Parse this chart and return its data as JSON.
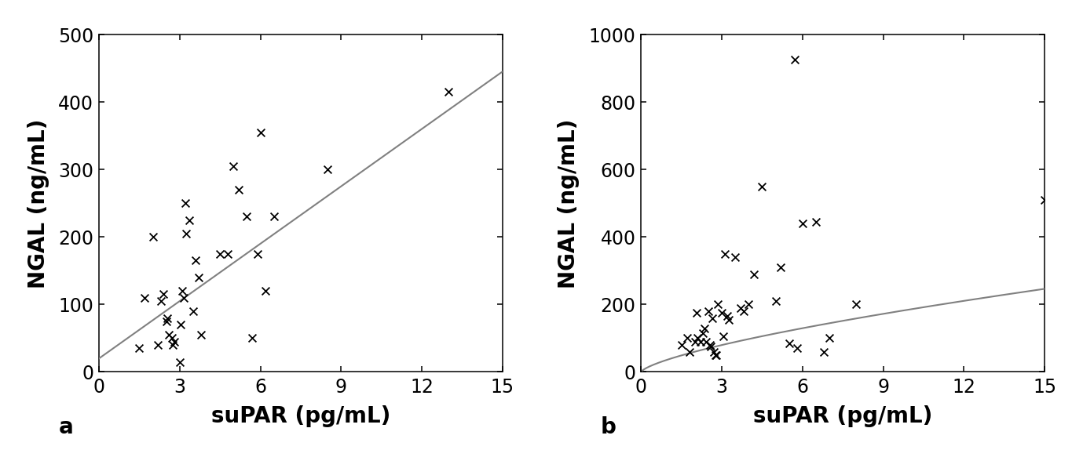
{
  "panel_a": {
    "label": "a",
    "xlabel": "suPAR (pg/mL)",
    "ylabel": "NGAL (ng/mL)",
    "xlim": [
      0,
      15
    ],
    "ylim": [
      0,
      500
    ],
    "xticks": [
      0,
      3,
      6,
      9,
      12,
      15
    ],
    "yticks": [
      0,
      100,
      200,
      300,
      400,
      500
    ],
    "scatter_x": [
      1.5,
      1.7,
      2.0,
      2.2,
      2.3,
      2.4,
      2.5,
      2.55,
      2.6,
      2.7,
      2.75,
      2.8,
      3.0,
      3.05,
      3.1,
      3.15,
      3.2,
      3.25,
      3.35,
      3.5,
      3.6,
      3.7,
      3.8,
      4.5,
      4.8,
      5.0,
      5.2,
      5.5,
      5.7,
      5.9,
      6.0,
      6.2,
      6.5,
      8.5,
      13.0
    ],
    "scatter_y": [
      35,
      110,
      200,
      40,
      105,
      115,
      75,
      80,
      55,
      50,
      40,
      45,
      15,
      70,
      120,
      110,
      250,
      205,
      225,
      90,
      165,
      140,
      55,
      175,
      175,
      305,
      270,
      230,
      50,
      175,
      355,
      120,
      230,
      300,
      415
    ],
    "line_x": [
      0,
      15
    ],
    "line_y": [
      20,
      445
    ],
    "line_color": "#808080",
    "scatter_color": "#000000",
    "marker": "x",
    "markersize": 50,
    "marker_lw": 1.3,
    "linewidth": 1.5
  },
  "panel_b": {
    "label": "b",
    "xlabel": "suPAR (pg/mL)",
    "ylabel": "NGAL (ng/mL)",
    "xlim": [
      0,
      15
    ],
    "ylim": [
      0,
      1000
    ],
    "xticks": [
      0,
      3,
      6,
      9,
      12,
      15
    ],
    "yticks": [
      0,
      200,
      400,
      600,
      800,
      1000
    ],
    "scatter_x": [
      1.5,
      1.7,
      1.8,
      2.0,
      2.05,
      2.1,
      2.2,
      2.3,
      2.35,
      2.4,
      2.5,
      2.55,
      2.6,
      2.65,
      2.7,
      2.75,
      2.8,
      2.85,
      3.0,
      3.05,
      3.1,
      3.2,
      3.25,
      3.5,
      3.7,
      3.8,
      4.0,
      4.2,
      4.5,
      5.0,
      5.2,
      5.5,
      6.0,
      6.5,
      6.8,
      7.0,
      8.0,
      15.0,
      5.7,
      5.8
    ],
    "scatter_y": [
      80,
      100,
      60,
      90,
      175,
      100,
      90,
      115,
      130,
      90,
      180,
      80,
      75,
      160,
      60,
      50,
      50,
      200,
      175,
      105,
      350,
      165,
      155,
      340,
      190,
      180,
      200,
      290,
      550,
      210,
      310,
      85,
      440,
      445,
      60,
      100,
      200,
      510,
      925,
      70
    ],
    "curve_a": 37.0,
    "curve_b": 0.7,
    "line_color": "#808080",
    "scatter_color": "#000000",
    "marker": "x",
    "markersize": 50,
    "marker_lw": 1.3,
    "linewidth": 1.5
  },
  "fig_bg_color": "#ffffff",
  "font_size_label": 20,
  "font_size_tick": 17,
  "font_size_panel_label": 20,
  "figwidth_cm": 35.05,
  "figheight_cm": 15.17,
  "dpi": 100
}
